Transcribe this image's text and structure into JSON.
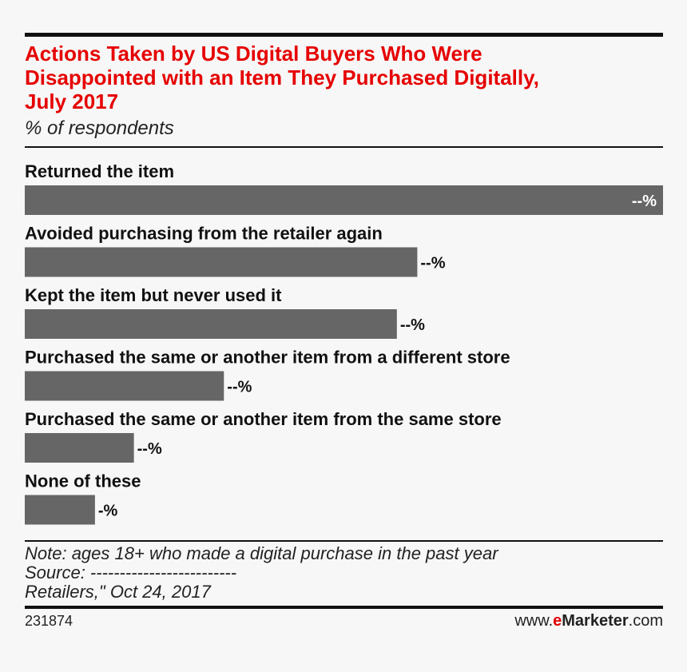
{
  "header": {
    "title": "Actions Taken by US Digital Buyers Who Were\nDisappointed with an Item They Purchased Digitally,\nJuly 2017",
    "subtitle": "% of respondents"
  },
  "chart_data": {
    "type": "bar",
    "orientation": "horizontal",
    "categories": [
      "Returned the item",
      "Avoided purchasing from the retailer again",
      "Kept the item but never used it",
      "Purchased the same or another item from a different store",
      "Purchased the same or another item from the same store",
      "None of these"
    ],
    "values": [
      100,
      61.5,
      58.3,
      31.2,
      17.1,
      11.0
    ],
    "value_labels": [
      "--%",
      "--%",
      "--%",
      "--%",
      "--%",
      "-%"
    ],
    "bar_color": "#666666",
    "xlim": [
      0,
      100
    ],
    "grid": false,
    "legend": "none"
  },
  "footer": {
    "note": "Note: ages 18+ who made a digital purchase in the past year",
    "source": "Source: -------------------------",
    "source_cont": "Retailers,\" Oct 24, 2017",
    "chart_id": "231874",
    "brand_prefix": "www.",
    "brand_accent": "e",
    "brand_name": "Marketer",
    "brand_suffix": ".com"
  }
}
